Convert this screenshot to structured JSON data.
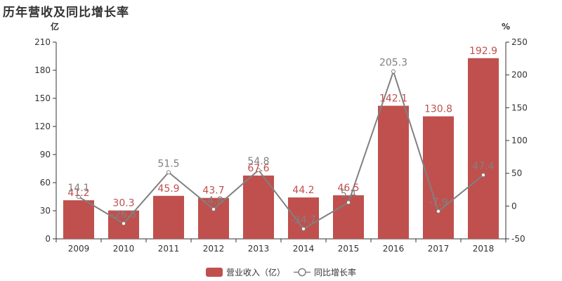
{
  "chart_data": {
    "type": "bar",
    "title": "历年营收及同比增长率",
    "categories": [
      "2009",
      "2010",
      "2011",
      "2012",
      "2013",
      "2014",
      "2015",
      "2016",
      "2017",
      "2018"
    ],
    "series": [
      {
        "name": "营业收入（亿）",
        "type": "bar",
        "axis": "left",
        "color": "#c0504d",
        "values": [
          41.2,
          30.3,
          45.9,
          43.7,
          67.6,
          44.2,
          46.5,
          142.1,
          130.8,
          192.9
        ]
      },
      {
        "name": "同比增长率",
        "type": "line",
        "axis": "right",
        "color": "#808080",
        "values": [
          14.1,
          -26.5,
          51.5,
          -4.8,
          54.8,
          -34.7,
          5.4,
          205.3,
          -7.9,
          47.4
        ]
      }
    ],
    "y_left": {
      "unit": "亿",
      "ylim": [
        0,
        210
      ],
      "ticks": [
        0,
        30,
        60,
        90,
        120,
        150,
        180,
        210
      ]
    },
    "y_right": {
      "unit": "%",
      "ylim": [
        -50,
        250
      ],
      "ticks": [
        -50,
        0,
        50,
        100,
        150,
        200,
        250
      ]
    },
    "grid": false,
    "legend": "bottom-center"
  }
}
